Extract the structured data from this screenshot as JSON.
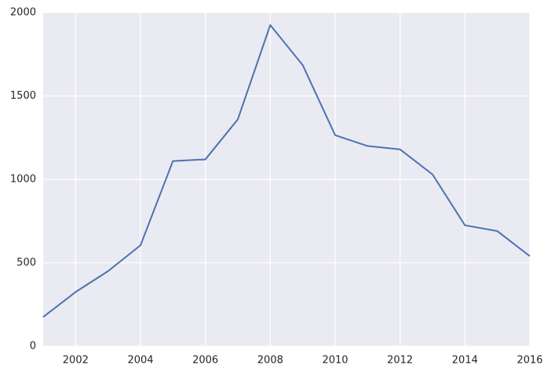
{
  "chart_data": {
    "type": "line",
    "x": [
      2001,
      2002,
      2003,
      2004,
      2005,
      2006,
      2007,
      2008,
      2009,
      2010,
      2011,
      2012,
      2013,
      2014,
      2015,
      2016
    ],
    "series": [
      {
        "color": "#4c72b0",
        "values": [
          175,
          325,
          450,
          605,
          1110,
          1120,
          1360,
          1925,
          1685,
          1265,
          1200,
          1180,
          1030,
          725,
          690,
          540
        ]
      }
    ],
    "xlim": [
      2001,
      2016
    ],
    "xticks": [
      2002,
      2004,
      2006,
      2008,
      2010,
      2012,
      2014,
      2016
    ],
    "ylim": [
      0,
      2000
    ],
    "yticks": [
      0,
      500,
      1000,
      1500,
      2000
    ],
    "grid": true,
    "background": "#eaeaf2"
  }
}
